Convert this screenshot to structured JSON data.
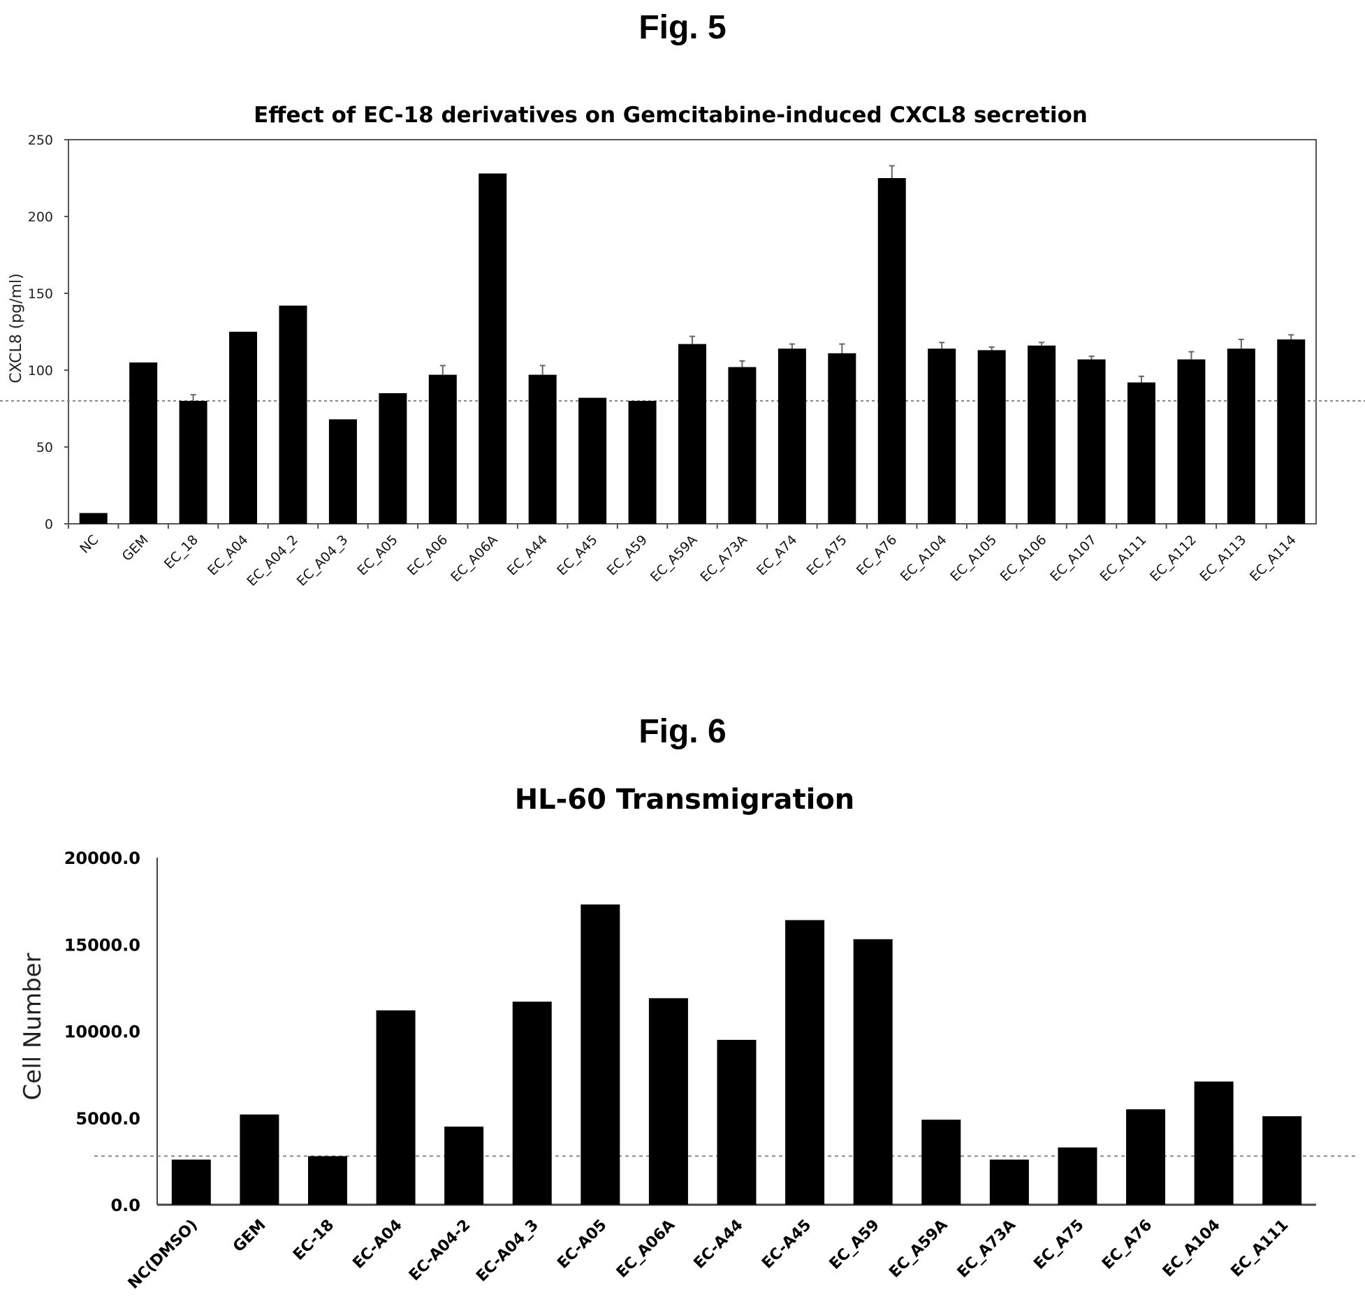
{
  "figures": {
    "fig5_label": "Fig. 5",
    "fig6_label": "Fig. 6"
  },
  "chart_data": [
    {
      "type": "bar",
      "title": "Effect of EC-18 derivatives on Gemcitabine-induced CXCL8 secretion",
      "xlabel": "",
      "ylabel": "CXCL8 (pg/ml)",
      "ylim": [
        0,
        250
      ],
      "yticks": [
        "0",
        "50",
        "100",
        "150",
        "200",
        "250"
      ],
      "grid": false,
      "reference_line": 80,
      "categories": [
        "NC",
        "GEM",
        "EC_18",
        "EC_A04",
        "EC_A04_2",
        "EC_A04_3",
        "EC_A05",
        "EC_A06",
        "EC_A06A",
        "EC_A44",
        "EC_A45",
        "EC_A59",
        "EC_A59A",
        "EC_A73A",
        "EC_A74",
        "EC_A75",
        "EC_A76",
        "EC_A104",
        "EC_A105",
        "EC_A106",
        "EC_A107",
        "EC_A111",
        "EC_A112",
        "EC_A113",
        "EC_A114"
      ],
      "values": [
        7,
        105,
        80,
        125,
        142,
        68,
        85,
        97,
        228,
        97,
        82,
        80,
        117,
        102,
        114,
        111,
        225,
        114,
        113,
        116,
        107,
        92,
        107,
        114,
        120
      ],
      "error_bars": [
        0,
        0,
        4,
        0,
        0,
        0,
        0,
        6,
        0,
        6,
        0,
        0,
        5,
        4,
        3,
        6,
        8,
        4,
        2,
        2,
        2,
        4,
        5,
        6,
        3
      ],
      "bar_color": "#000000"
    },
    {
      "type": "bar",
      "title": "HL-60 Transmigration",
      "xlabel": "",
      "ylabel": "Cell Number",
      "ylim": [
        0,
        20000
      ],
      "yticks": [
        "0.0",
        "5000.0",
        "10000.0",
        "15000.0",
        "20000.0"
      ],
      "grid": false,
      "reference_line": 2800,
      "categories": [
        "NC(DMSO)",
        "GEM",
        "EC-18",
        "EC-A04",
        "EC-A04-2",
        "EC-A04_3",
        "EC-A05",
        "EC_A06A",
        "EC-A44",
        "EC-A45",
        "EC_A59",
        "EC_A59A",
        "EC_A73A",
        "EC_A75",
        "EC_A76",
        "EC_A104",
        "EC_A111"
      ],
      "values": [
        2600,
        5200,
        2800,
        11200,
        4500,
        11700,
        17300,
        11900,
        9500,
        16400,
        15300,
        4900,
        2600,
        3300,
        5500,
        7100,
        5100
      ],
      "bar_color": "#000000"
    }
  ]
}
